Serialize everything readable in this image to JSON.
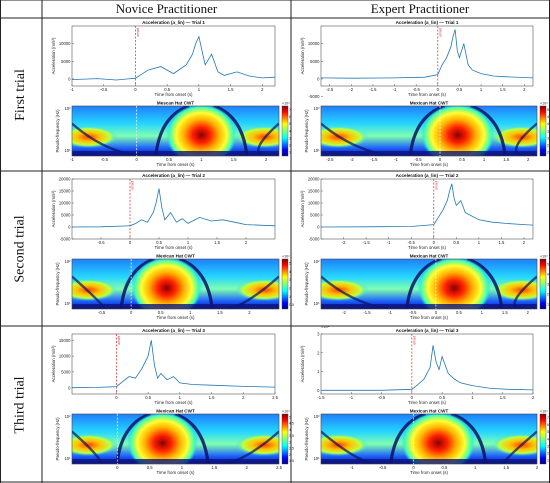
{
  "columns": [
    "Novice Practitioner",
    "Expert Practitioner"
  ],
  "rows": [
    "First trial",
    "Second trial",
    "Third trial"
  ],
  "colors": {
    "line": "#1f77b4",
    "onset": "#d62728",
    "border": "#222222"
  },
  "chart_data": [
    {
      "type": "line",
      "id": "novice-trial1",
      "title": "Acceleration (a_lin) — Trial 1",
      "onset_label": "onset",
      "xlabel": "Time from onset (s)",
      "ylabel": "Acceleration (m/s²)",
      "xlim": [
        -1,
        2.2
      ],
      "ylim": [
        -2000,
        15000
      ],
      "xticks": [
        -1,
        -0.5,
        0,
        0.5,
        1,
        1.5,
        2
      ],
      "yticks": [
        0,
        5000,
        10000
      ],
      "x": [
        -1.0,
        -0.6,
        -0.3,
        0.0,
        0.2,
        0.4,
        0.6,
        0.8,
        0.9,
        0.95,
        1.0,
        1.05,
        1.1,
        1.2,
        1.3,
        1.4,
        1.6,
        1.8,
        2.0,
        2.2
      ],
      "y": [
        -200,
        100,
        -300,
        200,
        2500,
        3500,
        1500,
        4000,
        7000,
        10000,
        12000,
        8000,
        4000,
        7000,
        2000,
        1000,
        2000,
        800,
        300,
        500
      ],
      "cwt": {
        "title": "Mescan Hat CWT",
        "xlabel": "Time from onset (s)",
        "ylabel": "Pseudo-frequency (Hz)",
        "ytick_top": "10²",
        "ytick_bottom": "10¹",
        "cb_exp": "×10⁴",
        "cb_ticks": [
          "7",
          "6",
          "5",
          "4",
          "3",
          "2",
          "1"
        ],
        "xticks": [
          -1,
          -0.5,
          0,
          0.5,
          1,
          1.5,
          2
        ],
        "xlim": [
          -1,
          2.2
        ],
        "peak": 1.0
      }
    },
    {
      "type": "line",
      "id": "expert-trial1",
      "title": "Acceleration (a_lin) — Trial 1",
      "onset_label": "onset",
      "xlabel": "Time from onset (s)",
      "ylabel": "Acceleration (m/s²)",
      "xlim": [
        -2.7,
        2.2
      ],
      "ylim": [
        -2000,
        15000
      ],
      "xticks": [
        -2.5,
        -2,
        -1.5,
        -1,
        -0.5,
        0,
        0.5,
        1,
        1.5,
        2
      ],
      "yticks": [
        -5000,
        0,
        5000,
        10000
      ],
      "x": [
        -2.7,
        -2.0,
        -1.0,
        -0.3,
        0.0,
        0.1,
        0.2,
        0.3,
        0.35,
        0.4,
        0.45,
        0.5,
        0.6,
        0.7,
        0.8,
        1.0,
        1.3,
        1.6,
        2.0,
        2.2
      ],
      "y": [
        300,
        200,
        300,
        500,
        1200,
        4000,
        6000,
        9000,
        12000,
        14000,
        8000,
        6000,
        10000,
        4000,
        2500,
        1500,
        800,
        600,
        400,
        300
      ],
      "cwt": {
        "title": "Mexican Hat CWT",
        "xlabel": "Time from onset (s)",
        "ylabel": "Pseudo-frequency (Hz)",
        "ytick_top": "10²",
        "ytick_bottom": "10¹",
        "cb_exp": "×10⁴",
        "cb_ticks": [
          "5",
          "4.5",
          "4",
          "3.5",
          "3",
          "2.5",
          "2"
        ],
        "xticks": [
          -2.5,
          -2,
          -1.5,
          -1,
          -0.5,
          0,
          0.5,
          1,
          1.5,
          2
        ],
        "xlim": [
          -2.7,
          2.2
        ],
        "peak": 0.4
      }
    },
    {
      "type": "line",
      "id": "novice-trial2",
      "title": "Acceleration (a_lin) — Trial 2",
      "onset_label": "onset",
      "xlabel": "Time from onset (s)",
      "ylabel": "Acceleration (m/s²)",
      "xlim": [
        -1,
        2.5
      ],
      "ylim": [
        -5000,
        20000
      ],
      "xticks": [
        -0.5,
        0,
        0.5,
        1,
        1.5,
        2
      ],
      "yticks": [
        -5000,
        0,
        5000,
        10000,
        15000,
        20000
      ],
      "x": [
        -1.0,
        -0.5,
        0.0,
        0.1,
        0.2,
        0.3,
        0.4,
        0.45,
        0.5,
        0.55,
        0.6,
        0.7,
        0.8,
        0.9,
        1.0,
        1.2,
        1.4,
        1.6,
        1.8,
        2.0,
        2.5
      ],
      "y": [
        0,
        100,
        500,
        1500,
        3000,
        2000,
        6000,
        10000,
        16000,
        8000,
        3000,
        6000,
        2000,
        3500,
        1500,
        4000,
        2500,
        3000,
        2000,
        1000,
        500
      ],
      "cwt": {
        "title": "Mexican Hat CWT",
        "xlabel": "Time from onset (s)",
        "ylabel": "Pseudo-frequency (Hz)",
        "ytick_top": "10²",
        "ytick_bottom": "10¹",
        "cb_exp": "×10⁴",
        "cb_ticks": [
          "5",
          "4",
          "3",
          "2",
          "1",
          "0.5"
        ],
        "xticks": [
          -0.5,
          0,
          0.5,
          1,
          1.5,
          2
        ],
        "xlim": [
          -1,
          2.5
        ],
        "peak": 0.6
      }
    },
    {
      "type": "line",
      "id": "expert-trial2",
      "title": "Acceleration (a_lin) — Trial 2",
      "onset_label": "onset",
      "xlabel": "Time from onset (s)",
      "ylabel": "Acceleration (m/s²)",
      "xlim": [
        -2.5,
        2.2
      ],
      "ylim": [
        -5000,
        20000
      ],
      "xticks": [
        -2,
        -1.5,
        -1,
        -0.5,
        0,
        0.5,
        1,
        1.5,
        2
      ],
      "yticks": [
        -5000,
        0,
        5000,
        10000,
        15000,
        20000
      ],
      "x": [
        -2.5,
        -1.5,
        -0.5,
        0.0,
        0.1,
        0.2,
        0.3,
        0.35,
        0.4,
        0.45,
        0.5,
        0.6,
        0.7,
        0.8,
        1.0,
        1.3,
        1.6,
        2.0,
        2.2
      ],
      "y": [
        0,
        100,
        200,
        1000,
        4000,
        7000,
        11000,
        15000,
        18000,
        12000,
        9000,
        11000,
        6000,
        5000,
        3000,
        2000,
        1500,
        1000,
        800
      ],
      "cwt": {
        "title": "Mexican Hat CWT",
        "xlabel": "Time from onset (s)",
        "ylabel": "Pseudo-frequency (Hz)",
        "ytick_top": "10²",
        "ytick_bottom": "10¹",
        "cb_exp": "×10⁴",
        "cb_ticks": [
          "5",
          "4",
          "3",
          "2",
          "1"
        ],
        "xticks": [
          -2,
          -1.5,
          -1,
          -0.5,
          0,
          0.5,
          1,
          1.5,
          2
        ],
        "xlim": [
          -2.5,
          2.2
        ],
        "peak": 0.4
      }
    },
    {
      "type": "line",
      "id": "novice-trial3",
      "title": "Acceleration (a_lin) — Trial 3",
      "onset_label": "onset",
      "xlabel": "Time from onset (s)",
      "ylabel": "Acceleration (m/s²)",
      "xlim": [
        -0.7,
        2.5
      ],
      "ylim": [
        -2000,
        17000
      ],
      "xticks": [
        0,
        0.5,
        1,
        1.5,
        2,
        2.5
      ],
      "yticks": [
        0,
        5000,
        10000,
        15000
      ],
      "x": [
        -0.7,
        -0.3,
        0.0,
        0.1,
        0.2,
        0.3,
        0.4,
        0.5,
        0.55,
        0.6,
        0.65,
        0.7,
        0.8,
        0.9,
        1.0,
        1.2,
        1.5,
        2.0,
        2.5
      ],
      "y": [
        0,
        100,
        300,
        2000,
        3500,
        3000,
        6000,
        10000,
        15000,
        7000,
        3000,
        4500,
        2500,
        3500,
        1500,
        1000,
        800,
        400,
        200
      ],
      "cwt": {
        "title": "Mexican Hat CWT",
        "xlabel": "Time from onset (s)",
        "ylabel": "Pseudo-frequency (Hz)",
        "ytick_top": "10²",
        "ytick_bottom": "10¹",
        "cb_exp": "×10⁴",
        "cb_ticks": [
          "5",
          "4.5",
          "4",
          "3.5",
          "3",
          "2.5",
          "2",
          "1.5"
        ],
        "xticks": [
          0,
          0.5,
          1,
          1.5,
          2,
          2.5
        ],
        "xlim": [
          -0.7,
          2.5
        ],
        "peak": 0.7
      }
    },
    {
      "type": "line",
      "id": "expert-trial3",
      "title": "Acceleration (a_lin) — Trial 3",
      "onset_label": "onset",
      "xlabel": "Time from onset (s)",
      "ylabel": "Acceleration (m/s²)",
      "ylabel_exp": "×10⁴",
      "xlim": [
        -1.5,
        2.0
      ],
      "ylim": [
        -0.2,
        3
      ],
      "xticks": [
        -1.5,
        -1,
        -0.5,
        0,
        0.5,
        1,
        1.5,
        2
      ],
      "yticks": [
        0,
        1,
        2,
        3
      ],
      "x": [
        -1.5,
        -1.0,
        -0.5,
        0.0,
        0.1,
        0.2,
        0.3,
        0.35,
        0.4,
        0.45,
        0.5,
        0.6,
        0.7,
        0.8,
        1.0,
        1.3,
        1.6,
        2.0
      ],
      "y": [
        0,
        0,
        0,
        0.05,
        0.3,
        0.6,
        1.2,
        2.4,
        1.5,
        1.1,
        1.8,
        0.9,
        0.6,
        0.4,
        0.25,
        0.1,
        0.05,
        0.02
      ],
      "cwt": {
        "title": "Mexican Hat CWT",
        "xlabel": "Time from onset (s)",
        "ylabel": "Pseudo-frequency (Hz)",
        "ytick_top": "10²",
        "ytick_bottom": "10¹",
        "cb_exp": "×10⁴",
        "cb_ticks": [
          "7",
          "6",
          "5",
          "4",
          "3",
          "2",
          "1"
        ],
        "xticks": [
          -1,
          -0.5,
          0,
          0.5,
          1,
          1.5,
          2
        ],
        "xlim": [
          -1.5,
          2.0
        ],
        "peak": 0.4
      }
    }
  ]
}
